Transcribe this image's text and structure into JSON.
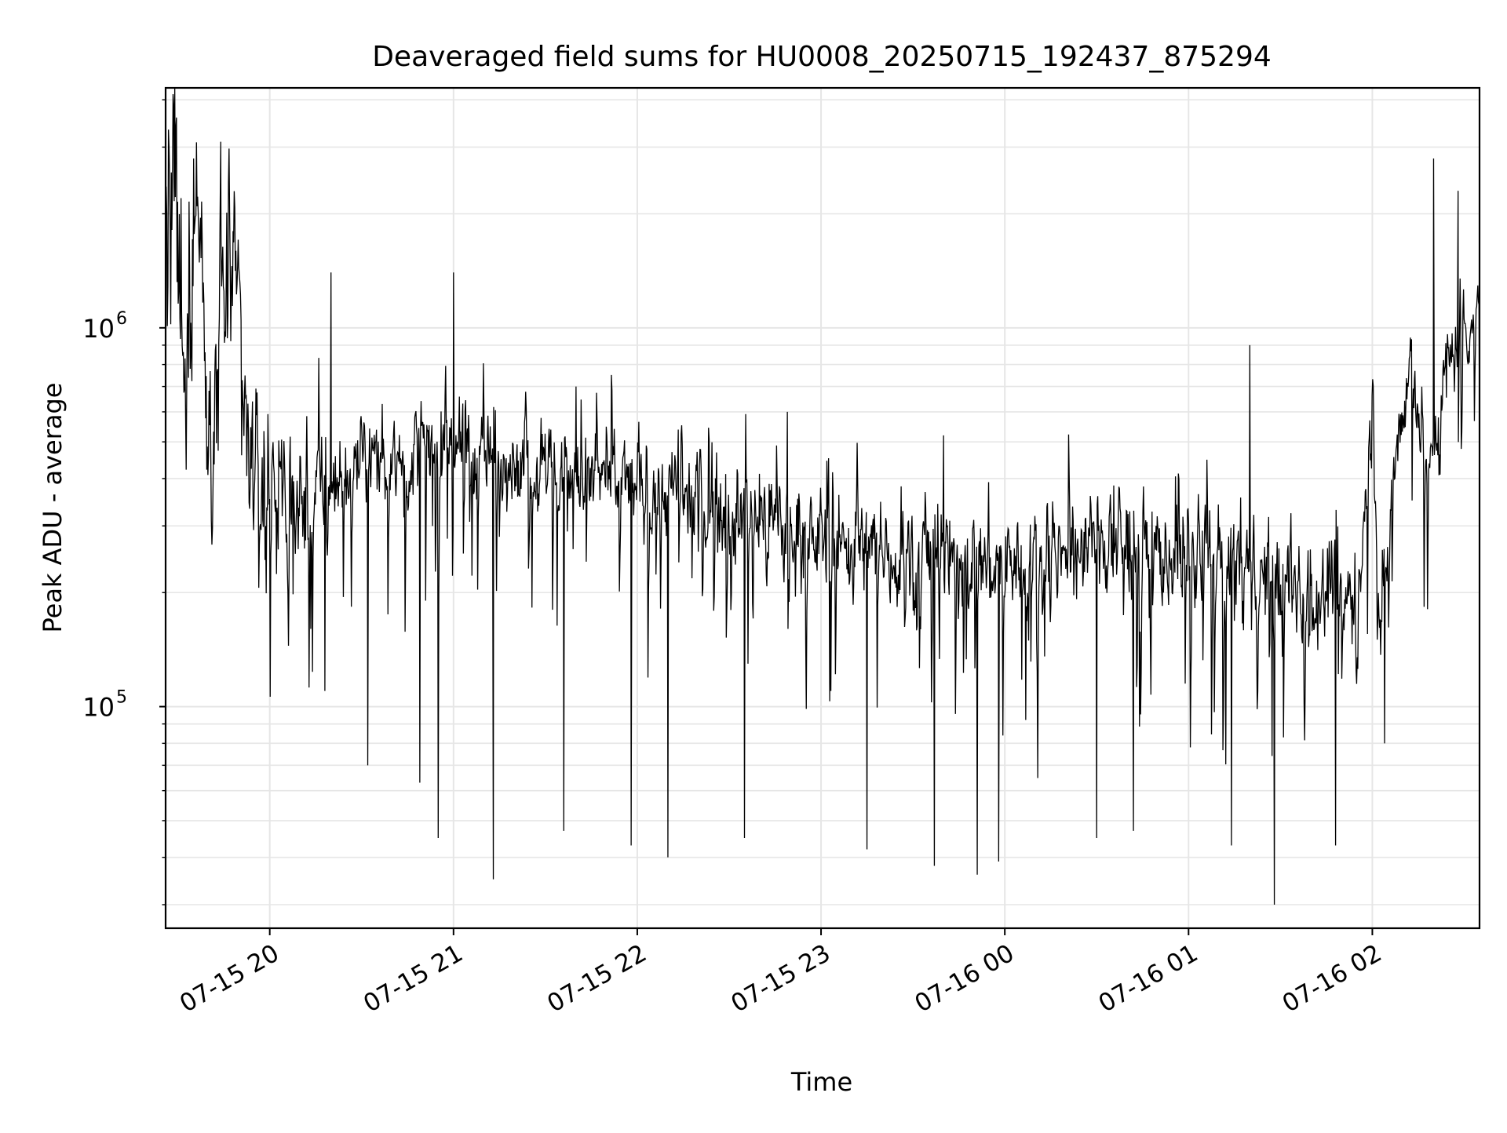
{
  "chart_data": {
    "type": "line",
    "title": "Deaveraged field sums for HU0008_20250715_192437_875294",
    "xlabel": "Time",
    "ylabel": "Peak ADU - average",
    "yscale": "log",
    "grid": true,
    "line_color": "#000000",
    "grid_color": "#e6e6e6",
    "x_range": [
      "2025-07-15 19:26",
      "2025-07-16 02:35"
    ],
    "ylim": [
      26000,
      4300000
    ],
    "x_ticks": [
      {
        "t": "2025-07-15 20:00",
        "label": "07-15 20"
      },
      {
        "t": "2025-07-15 21:00",
        "label": "07-15 21"
      },
      {
        "t": "2025-07-15 22:00",
        "label": "07-15 22"
      },
      {
        "t": "2025-07-15 23:00",
        "label": "07-15 23"
      },
      {
        "t": "2025-07-16 00:00",
        "label": "07-16 00"
      },
      {
        "t": "2025-07-16 01:00",
        "label": "07-16 01"
      },
      {
        "t": "2025-07-16 02:00",
        "label": "07-16 02"
      }
    ],
    "y_ticks": [
      {
        "value": 100000,
        "base": "10",
        "exp": "5"
      },
      {
        "value": 1000000,
        "base": "10",
        "exp": "6"
      }
    ],
    "series": [
      {
        "points": [
          [
            "2025-07-15 19:26",
            1500000
          ],
          [
            "2025-07-15 19:29",
            2300000
          ],
          [
            "2025-07-15 19:32",
            600000
          ],
          [
            "2025-07-15 19:35",
            2600000
          ],
          [
            "2025-07-15 19:38",
            1400000
          ],
          [
            "2025-07-15 19:41",
            600000
          ],
          [
            "2025-07-15 19:44",
            1200000
          ],
          [
            "2025-07-15 19:47",
            1250000
          ],
          [
            "2025-07-15 19:50",
            950000
          ],
          [
            "2025-07-15 19:53",
            480000
          ],
          [
            "2025-07-15 19:56",
            400000
          ],
          [
            "2025-07-15 19:59",
            370000
          ],
          [
            "2025-07-15 20:02",
            320000
          ],
          [
            "2025-07-15 20:05",
            300000
          ],
          [
            "2025-07-15 20:10",
            330000
          ],
          [
            "2025-07-15 20:15",
            360000
          ],
          [
            "2025-07-15 20:20",
            380000
          ],
          [
            "2025-07-15 20:30",
            430000
          ],
          [
            "2025-07-15 20:40",
            460000
          ],
          [
            "2025-07-15 20:50",
            480000
          ],
          [
            "2025-07-15 21:00",
            500000
          ],
          [
            "2025-07-15 21:10",
            470000
          ],
          [
            "2025-07-15 21:20",
            450000
          ],
          [
            "2025-07-15 21:30",
            430000
          ],
          [
            "2025-07-15 21:45",
            400000
          ],
          [
            "2025-07-15 22:00",
            380000
          ],
          [
            "2025-07-15 22:15",
            360000
          ],
          [
            "2025-07-15 22:30",
            330000
          ],
          [
            "2025-07-15 22:45",
            300000
          ],
          [
            "2025-07-15 23:00",
            280000
          ],
          [
            "2025-07-15 23:15",
            260000
          ],
          [
            "2025-07-15 23:30",
            250000
          ],
          [
            "2025-07-15 23:45",
            240000
          ],
          [
            "2025-07-16 00:00",
            240000
          ],
          [
            "2025-07-16 00:15",
            250000
          ],
          [
            "2025-07-16 00:30",
            270000
          ],
          [
            "2025-07-16 00:45",
            260000
          ],
          [
            "2025-07-16 01:00",
            250000
          ],
          [
            "2025-07-16 01:15",
            230000
          ],
          [
            "2025-07-16 01:30",
            210000
          ],
          [
            "2025-07-16 01:45",
            200000
          ],
          [
            "2025-07-16 01:55",
            190000
          ],
          [
            "2025-07-16 02:00",
            650000
          ],
          [
            "2025-07-16 02:03",
            140000
          ],
          [
            "2025-07-16 02:07",
            450000
          ],
          [
            "2025-07-16 02:13",
            800000
          ],
          [
            "2025-07-16 02:18",
            420000
          ],
          [
            "2025-07-16 02:22",
            600000
          ],
          [
            "2025-07-16 02:26",
            900000
          ],
          [
            "2025-07-16 02:30",
            1000000
          ],
          [
            "2025-07-16 02:35",
            1100000
          ]
        ],
        "noise": [
          [
            0.0,
            1.7
          ],
          [
            1.0,
            0.55
          ],
          [
            3.0,
            0.65
          ],
          [
            6.0,
            0.75
          ],
          [
            7.0,
            0.55
          ],
          [
            7.17,
            0.45
          ],
          [
            7.3,
            0.7
          ],
          [
            7.5,
            0.8
          ],
          [
            8.0,
            0.75
          ]
        ]
      }
    ],
    "spikes": [
      [
        "2025-07-15 19:44",
        3100000
      ],
      [
        "2025-07-15 20:20",
        1400000
      ],
      [
        "2025-07-15 21:00",
        1400000
      ],
      [
        "2025-07-15 21:40",
        700000
      ],
      [
        "2025-07-15 22:49",
        600000
      ],
      [
        "2025-07-15 23:40",
        520000
      ],
      [
        "2025-07-16 01:20",
        900000
      ],
      [
        "2025-07-16 02:20",
        2800000
      ],
      [
        "2025-07-16 02:28",
        2300000
      ]
    ],
    "dips": [
      [
        "2025-07-15 20:18",
        110000
      ],
      [
        "2025-07-15 20:32",
        70000
      ],
      [
        "2025-07-15 20:49",
        63000
      ],
      [
        "2025-07-15 20:55",
        45000
      ],
      [
        "2025-07-15 21:13",
        35000
      ],
      [
        "2025-07-15 21:36",
        47000
      ],
      [
        "2025-07-15 21:58",
        43000
      ],
      [
        "2025-07-15 22:10",
        40000
      ],
      [
        "2025-07-15 22:35",
        45000
      ],
      [
        "2025-07-15 23:15",
        42000
      ],
      [
        "2025-07-15 23:37",
        38000
      ],
      [
        "2025-07-15 23:51",
        36000
      ],
      [
        "2025-07-15 23:58",
        39000
      ],
      [
        "2025-07-16 00:30",
        45000
      ],
      [
        "2025-07-16 00:42",
        47000
      ],
      [
        "2025-07-16 01:14",
        43000
      ],
      [
        "2025-07-16 01:28",
        30000
      ],
      [
        "2025-07-16 01:48",
        43000
      ],
      [
        "2025-07-16 02:04",
        80000
      ]
    ]
  }
}
